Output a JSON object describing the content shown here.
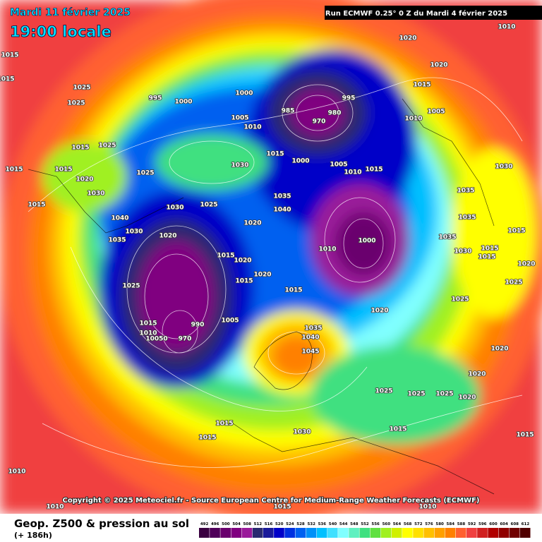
{
  "header": {
    "date": "Mardi 11 février 2025",
    "time": "19:00 locale",
    "run": "Run ECMWF 0.25° 0 Z du Mardi 4 février 2025"
  },
  "copyright": "Copyright © 2025 Meteociel.fr - Source European Centre for Medium-Range Weather Forecasts (ECMWF)",
  "footer": {
    "title": "Geop. Z500 & pression au sol",
    "lead": "(+ 186h)"
  },
  "legend": {
    "labels": [
      "492",
      "496",
      "500",
      "504",
      "508",
      "512",
      "516",
      "520",
      "524",
      "528",
      "532",
      "536",
      "540",
      "544",
      "548",
      "552",
      "556",
      "560",
      "564",
      "568",
      "572",
      "576",
      "580",
      "584",
      "588",
      "592",
      "596",
      "600",
      "604",
      "608",
      "612"
    ],
    "colors": [
      "#3a0040",
      "#50005a",
      "#6a006e",
      "#800080",
      "#9a1a9a",
      "#2a2a70",
      "#1a1a9a",
      "#0000c8",
      "#0030e0",
      "#0060f0",
      "#0090f8",
      "#00c0ff",
      "#40e0ff",
      "#80ffff",
      "#60f0c0",
      "#40e080",
      "#60e040",
      "#a0f020",
      "#d0f000",
      "#ffff00",
      "#ffe000",
      "#ffc000",
      "#ffa000",
      "#ff8000",
      "#ff6030",
      "#f04040",
      "#d02020",
      "#b00000",
      "#900000",
      "#700000",
      "#500000"
    ]
  },
  "isobar_labels": [
    "1010",
    "1020",
    "1020",
    "1015",
    "1015",
    "1025",
    "1025",
    "995",
    "1000",
    "1000",
    "995",
    "985",
    "970",
    "980",
    "1015",
    "1005",
    "1010",
    "1005",
    "1010",
    "1015",
    "1025",
    "1015",
    "1015",
    "1020",
    "1030",
    "1015",
    "1025",
    "1030",
    "1015",
    "1000",
    "1005",
    "1010",
    "1015",
    "1030",
    "1035",
    "1035",
    "1040",
    "1025",
    "1030",
    "1040",
    "1030",
    "1035",
    "1020",
    "1020",
    "1000",
    "1010",
    "1015",
    "1020",
    "1020",
    "1025",
    "1015",
    "1015",
    "1020",
    "1015",
    "1010",
    "10050",
    "970",
    "990",
    "1005",
    "1035",
    "1040",
    "1045",
    "1025",
    "1025",
    "1025",
    "1020",
    "1015",
    "1015",
    "1030",
    "1015",
    "1015",
    "1010",
    "1010",
    "1015",
    "1010",
    "1035",
    "1035",
    "1015",
    "1015",
    "1020",
    "1025",
    "1020",
    "1020",
    "1015",
    "1025",
    "1030"
  ]
}
